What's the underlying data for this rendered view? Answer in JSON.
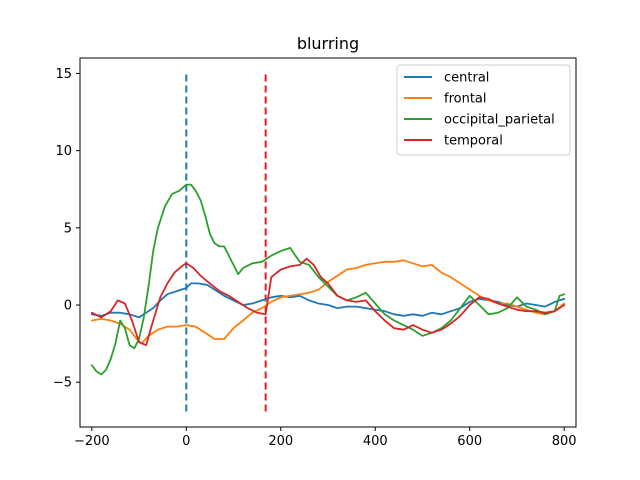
{
  "chart_data": {
    "type": "line",
    "title": "blurring",
    "xlabel": "",
    "ylabel": "",
    "xlim": [
      -225,
      825
    ],
    "ylim": [
      -7.9,
      16.0
    ],
    "xticks": [
      -200,
      0,
      200,
      400,
      600,
      800
    ],
    "yticks": [
      -5,
      0,
      5,
      10,
      15
    ],
    "xtick_labels": [
      "−200",
      "0",
      "200",
      "400",
      "600",
      "800"
    ],
    "ytick_labels": [
      "−5",
      "0",
      "5",
      "10",
      "15"
    ],
    "grid": false,
    "legend": {
      "position": "top-right"
    },
    "vlines": [
      {
        "x": 0,
        "ymin": -6.9,
        "ymax": 15,
        "color": "#1f77b4",
        "style": "dashed"
      },
      {
        "x": 168,
        "ymin": -6.9,
        "ymax": 15,
        "color": "#e31a1c",
        "style": "dashed"
      }
    ],
    "series": [
      {
        "name": "central",
        "color": "#1f77b4",
        "points": [
          [
            -200,
            -0.6
          ],
          [
            -180,
            -0.7
          ],
          [
            -160,
            -0.5
          ],
          [
            -140,
            -0.5
          ],
          [
            -120,
            -0.6
          ],
          [
            -100,
            -0.8
          ],
          [
            -85,
            -0.5
          ],
          [
            -70,
            -0.2
          ],
          [
            -55,
            0.3
          ],
          [
            -40,
            0.7
          ],
          [
            -20,
            0.9
          ],
          [
            0,
            1.1
          ],
          [
            10,
            1.4
          ],
          [
            25,
            1.4
          ],
          [
            45,
            1.3
          ],
          [
            60,
            1.0
          ],
          [
            80,
            0.6
          ],
          [
            100,
            0.3
          ],
          [
            120,
            0.0
          ],
          [
            140,
            0.1
          ],
          [
            160,
            0.3
          ],
          [
            180,
            0.5
          ],
          [
            200,
            0.6
          ],
          [
            220,
            0.5
          ],
          [
            240,
            0.6
          ],
          [
            260,
            0.3
          ],
          [
            280,
            0.1
          ],
          [
            300,
            0.0
          ],
          [
            320,
            -0.2
          ],
          [
            340,
            -0.1
          ],
          [
            360,
            -0.1
          ],
          [
            380,
            -0.2
          ],
          [
            400,
            -0.3
          ],
          [
            420,
            -0.4
          ],
          [
            440,
            -0.6
          ],
          [
            460,
            -0.7
          ],
          [
            480,
            -0.6
          ],
          [
            500,
            -0.7
          ],
          [
            520,
            -0.5
          ],
          [
            540,
            -0.6
          ],
          [
            560,
            -0.4
          ],
          [
            580,
            -0.2
          ],
          [
            600,
            0.2
          ],
          [
            620,
            0.4
          ],
          [
            640,
            0.3
          ],
          [
            660,
            0.2
          ],
          [
            680,
            0.0
          ],
          [
            700,
            -0.1
          ],
          [
            720,
            0.1
          ],
          [
            740,
            0.0
          ],
          [
            760,
            -0.1
          ],
          [
            780,
            0.2
          ],
          [
            800,
            0.4
          ]
        ]
      },
      {
        "name": "frontal",
        "color": "#ff7f0e",
        "points": [
          [
            -200,
            -1.0
          ],
          [
            -180,
            -0.9
          ],
          [
            -160,
            -1.0
          ],
          [
            -140,
            -1.2
          ],
          [
            -120,
            -1.6
          ],
          [
            -105,
            -2.2
          ],
          [
            -95,
            -2.5
          ],
          [
            -80,
            -2.0
          ],
          [
            -60,
            -1.6
          ],
          [
            -40,
            -1.4
          ],
          [
            -20,
            -1.4
          ],
          [
            0,
            -1.3
          ],
          [
            20,
            -1.4
          ],
          [
            40,
            -1.8
          ],
          [
            60,
            -2.2
          ],
          [
            80,
            -2.2
          ],
          [
            100,
            -1.5
          ],
          [
            120,
            -1.0
          ],
          [
            140,
            -0.5
          ],
          [
            160,
            -0.2
          ],
          [
            180,
            0.2
          ],
          [
            200,
            0.5
          ],
          [
            220,
            0.6
          ],
          [
            240,
            0.7
          ],
          [
            260,
            0.8
          ],
          [
            280,
            1.0
          ],
          [
            300,
            1.5
          ],
          [
            320,
            1.9
          ],
          [
            340,
            2.3
          ],
          [
            360,
            2.4
          ],
          [
            380,
            2.6
          ],
          [
            400,
            2.7
          ],
          [
            420,
            2.8
          ],
          [
            440,
            2.8
          ],
          [
            460,
            2.9
          ],
          [
            480,
            2.7
          ],
          [
            500,
            2.5
          ],
          [
            520,
            2.6
          ],
          [
            540,
            2.1
          ],
          [
            560,
            1.8
          ],
          [
            580,
            1.4
          ],
          [
            600,
            1.0
          ],
          [
            620,
            0.6
          ],
          [
            640,
            0.3
          ],
          [
            660,
            0.1
          ],
          [
            680,
            0.1
          ],
          [
            700,
            -0.1
          ],
          [
            720,
            -0.3
          ],
          [
            740,
            -0.5
          ],
          [
            760,
            -0.6
          ],
          [
            780,
            -0.4
          ],
          [
            800,
            0.1
          ]
        ]
      },
      {
        "name": "occipital_parietal",
        "color": "#2ca02c",
        "points": [
          [
            -200,
            -3.9
          ],
          [
            -190,
            -4.3
          ],
          [
            -180,
            -4.5
          ],
          [
            -170,
            -4.2
          ],
          [
            -160,
            -3.5
          ],
          [
            -150,
            -2.5
          ],
          [
            -140,
            -1.0
          ],
          [
            -130,
            -1.5
          ],
          [
            -120,
            -2.6
          ],
          [
            -110,
            -2.8
          ],
          [
            -100,
            -2.2
          ],
          [
            -90,
            -0.8
          ],
          [
            -80,
            1.2
          ],
          [
            -70,
            3.5
          ],
          [
            -60,
            5.0
          ],
          [
            -45,
            6.4
          ],
          [
            -30,
            7.2
          ],
          [
            -15,
            7.4
          ],
          [
            0,
            7.8
          ],
          [
            10,
            7.8
          ],
          [
            20,
            7.4
          ],
          [
            30,
            6.8
          ],
          [
            40,
            5.8
          ],
          [
            50,
            4.6
          ],
          [
            60,
            4.0
          ],
          [
            70,
            3.8
          ],
          [
            80,
            3.8
          ],
          [
            90,
            3.2
          ],
          [
            100,
            2.6
          ],
          [
            110,
            2.0
          ],
          [
            120,
            2.4
          ],
          [
            140,
            2.7
          ],
          [
            160,
            2.8
          ],
          [
            180,
            3.2
          ],
          [
            200,
            3.5
          ],
          [
            220,
            3.7
          ],
          [
            240,
            2.8
          ],
          [
            260,
            2.6
          ],
          [
            280,
            1.8
          ],
          [
            300,
            1.2
          ],
          [
            320,
            0.6
          ],
          [
            340,
            0.3
          ],
          [
            360,
            0.5
          ],
          [
            380,
            0.8
          ],
          [
            400,
            0.1
          ],
          [
            420,
            -0.6
          ],
          [
            440,
            -1.0
          ],
          [
            460,
            -1.3
          ],
          [
            480,
            -1.6
          ],
          [
            500,
            -2.0
          ],
          [
            520,
            -1.8
          ],
          [
            540,
            -1.5
          ],
          [
            560,
            -1.0
          ],
          [
            580,
            -0.2
          ],
          [
            600,
            0.6
          ],
          [
            620,
            0.0
          ],
          [
            640,
            -0.6
          ],
          [
            660,
            -0.5
          ],
          [
            680,
            -0.2
          ],
          [
            700,
            0.5
          ],
          [
            720,
            -0.1
          ],
          [
            740,
            -0.3
          ],
          [
            760,
            -0.6
          ],
          [
            780,
            -0.4
          ],
          [
            790,
            0.6
          ],
          [
            800,
            0.7
          ]
        ]
      },
      {
        "name": "temporal",
        "color": "#d62728",
        "points": [
          [
            -200,
            -0.5
          ],
          [
            -180,
            -0.8
          ],
          [
            -160,
            -0.4
          ],
          [
            -145,
            0.3
          ],
          [
            -130,
            0.1
          ],
          [
            -115,
            -1.0
          ],
          [
            -100,
            -2.4
          ],
          [
            -85,
            -2.6
          ],
          [
            -70,
            -1.0
          ],
          [
            -55,
            0.5
          ],
          [
            -40,
            1.4
          ],
          [
            -25,
            2.1
          ],
          [
            -10,
            2.5
          ],
          [
            0,
            2.7
          ],
          [
            15,
            2.4
          ],
          [
            30,
            1.9
          ],
          [
            50,
            1.4
          ],
          [
            70,
            0.9
          ],
          [
            90,
            0.6
          ],
          [
            110,
            0.2
          ],
          [
            130,
            -0.2
          ],
          [
            150,
            -0.5
          ],
          [
            168,
            -0.6
          ],
          [
            180,
            1.8
          ],
          [
            200,
            2.3
          ],
          [
            220,
            2.5
          ],
          [
            240,
            2.6
          ],
          [
            255,
            3.0
          ],
          [
            270,
            2.6
          ],
          [
            285,
            1.8
          ],
          [
            300,
            1.4
          ],
          [
            320,
            0.6
          ],
          [
            340,
            0.3
          ],
          [
            360,
            0.2
          ],
          [
            380,
            0.3
          ],
          [
            400,
            -0.4
          ],
          [
            420,
            -1.0
          ],
          [
            440,
            -1.5
          ],
          [
            460,
            -1.6
          ],
          [
            480,
            -1.3
          ],
          [
            500,
            -1.6
          ],
          [
            520,
            -1.8
          ],
          [
            540,
            -1.6
          ],
          [
            560,
            -1.2
          ],
          [
            580,
            -0.7
          ],
          [
            600,
            0.0
          ],
          [
            620,
            0.5
          ],
          [
            640,
            0.4
          ],
          [
            660,
            0.1
          ],
          [
            680,
            -0.1
          ],
          [
            700,
            -0.3
          ],
          [
            720,
            -0.4
          ],
          [
            740,
            -0.4
          ],
          [
            760,
            -0.5
          ],
          [
            780,
            -0.4
          ],
          [
            800,
            0.0
          ]
        ]
      }
    ]
  }
}
